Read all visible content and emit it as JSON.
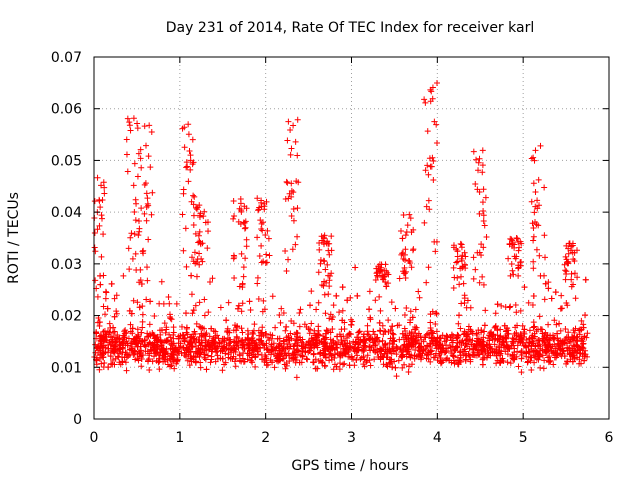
{
  "chart_data": {
    "type": "scatter",
    "title": "Day 231 of 2014, Rate Of TEC Index for receiver karl",
    "xlabel": "GPS time / hours",
    "ylabel": "ROTI / TECUs",
    "xlim": [
      0,
      6
    ],
    "ylim": [
      0,
      0.07
    ],
    "x_ticks": [
      0,
      1,
      2,
      3,
      4,
      5,
      6
    ],
    "x_tick_labels": [
      "0",
      "1",
      "2",
      "3",
      "4",
      "5",
      "6"
    ],
    "y_ticks": [
      0,
      0.01,
      0.02,
      0.03,
      0.04,
      0.05,
      0.06,
      0.07
    ],
    "y_tick_labels": [
      "0",
      "0.01",
      "0.02",
      "0.03",
      "0.04",
      "0.05",
      "0.06",
      "0.07"
    ],
    "grid": true,
    "marker": "+",
    "series": [
      {
        "name": "ROTI",
        "color": "#ff0000",
        "x_range": [
          0,
          5.75
        ],
        "baseline": {
          "min": 0.005,
          "max": 0.025,
          "typical": 0.014
        },
        "peaks": [
          {
            "x": 0.05,
            "y": 0.048
          },
          {
            "x": 0.45,
            "y": 0.059
          },
          {
            "x": 0.6,
            "y": 0.057
          },
          {
            "x": 1.1,
            "y": 0.057
          },
          {
            "x": 1.25,
            "y": 0.042
          },
          {
            "x": 1.7,
            "y": 0.043
          },
          {
            "x": 1.98,
            "y": 0.045
          },
          {
            "x": 2.3,
            "y": 0.058
          },
          {
            "x": 2.7,
            "y": 0.036
          },
          {
            "x": 3.35,
            "y": 0.03
          },
          {
            "x": 3.65,
            "y": 0.04
          },
          {
            "x": 3.92,
            "y": 0.065
          },
          {
            "x": 4.25,
            "y": 0.034
          },
          {
            "x": 4.5,
            "y": 0.053
          },
          {
            "x": 4.9,
            "y": 0.035
          },
          {
            "x": 5.18,
            "y": 0.053
          },
          {
            "x": 5.55,
            "y": 0.034
          }
        ]
      }
    ]
  }
}
